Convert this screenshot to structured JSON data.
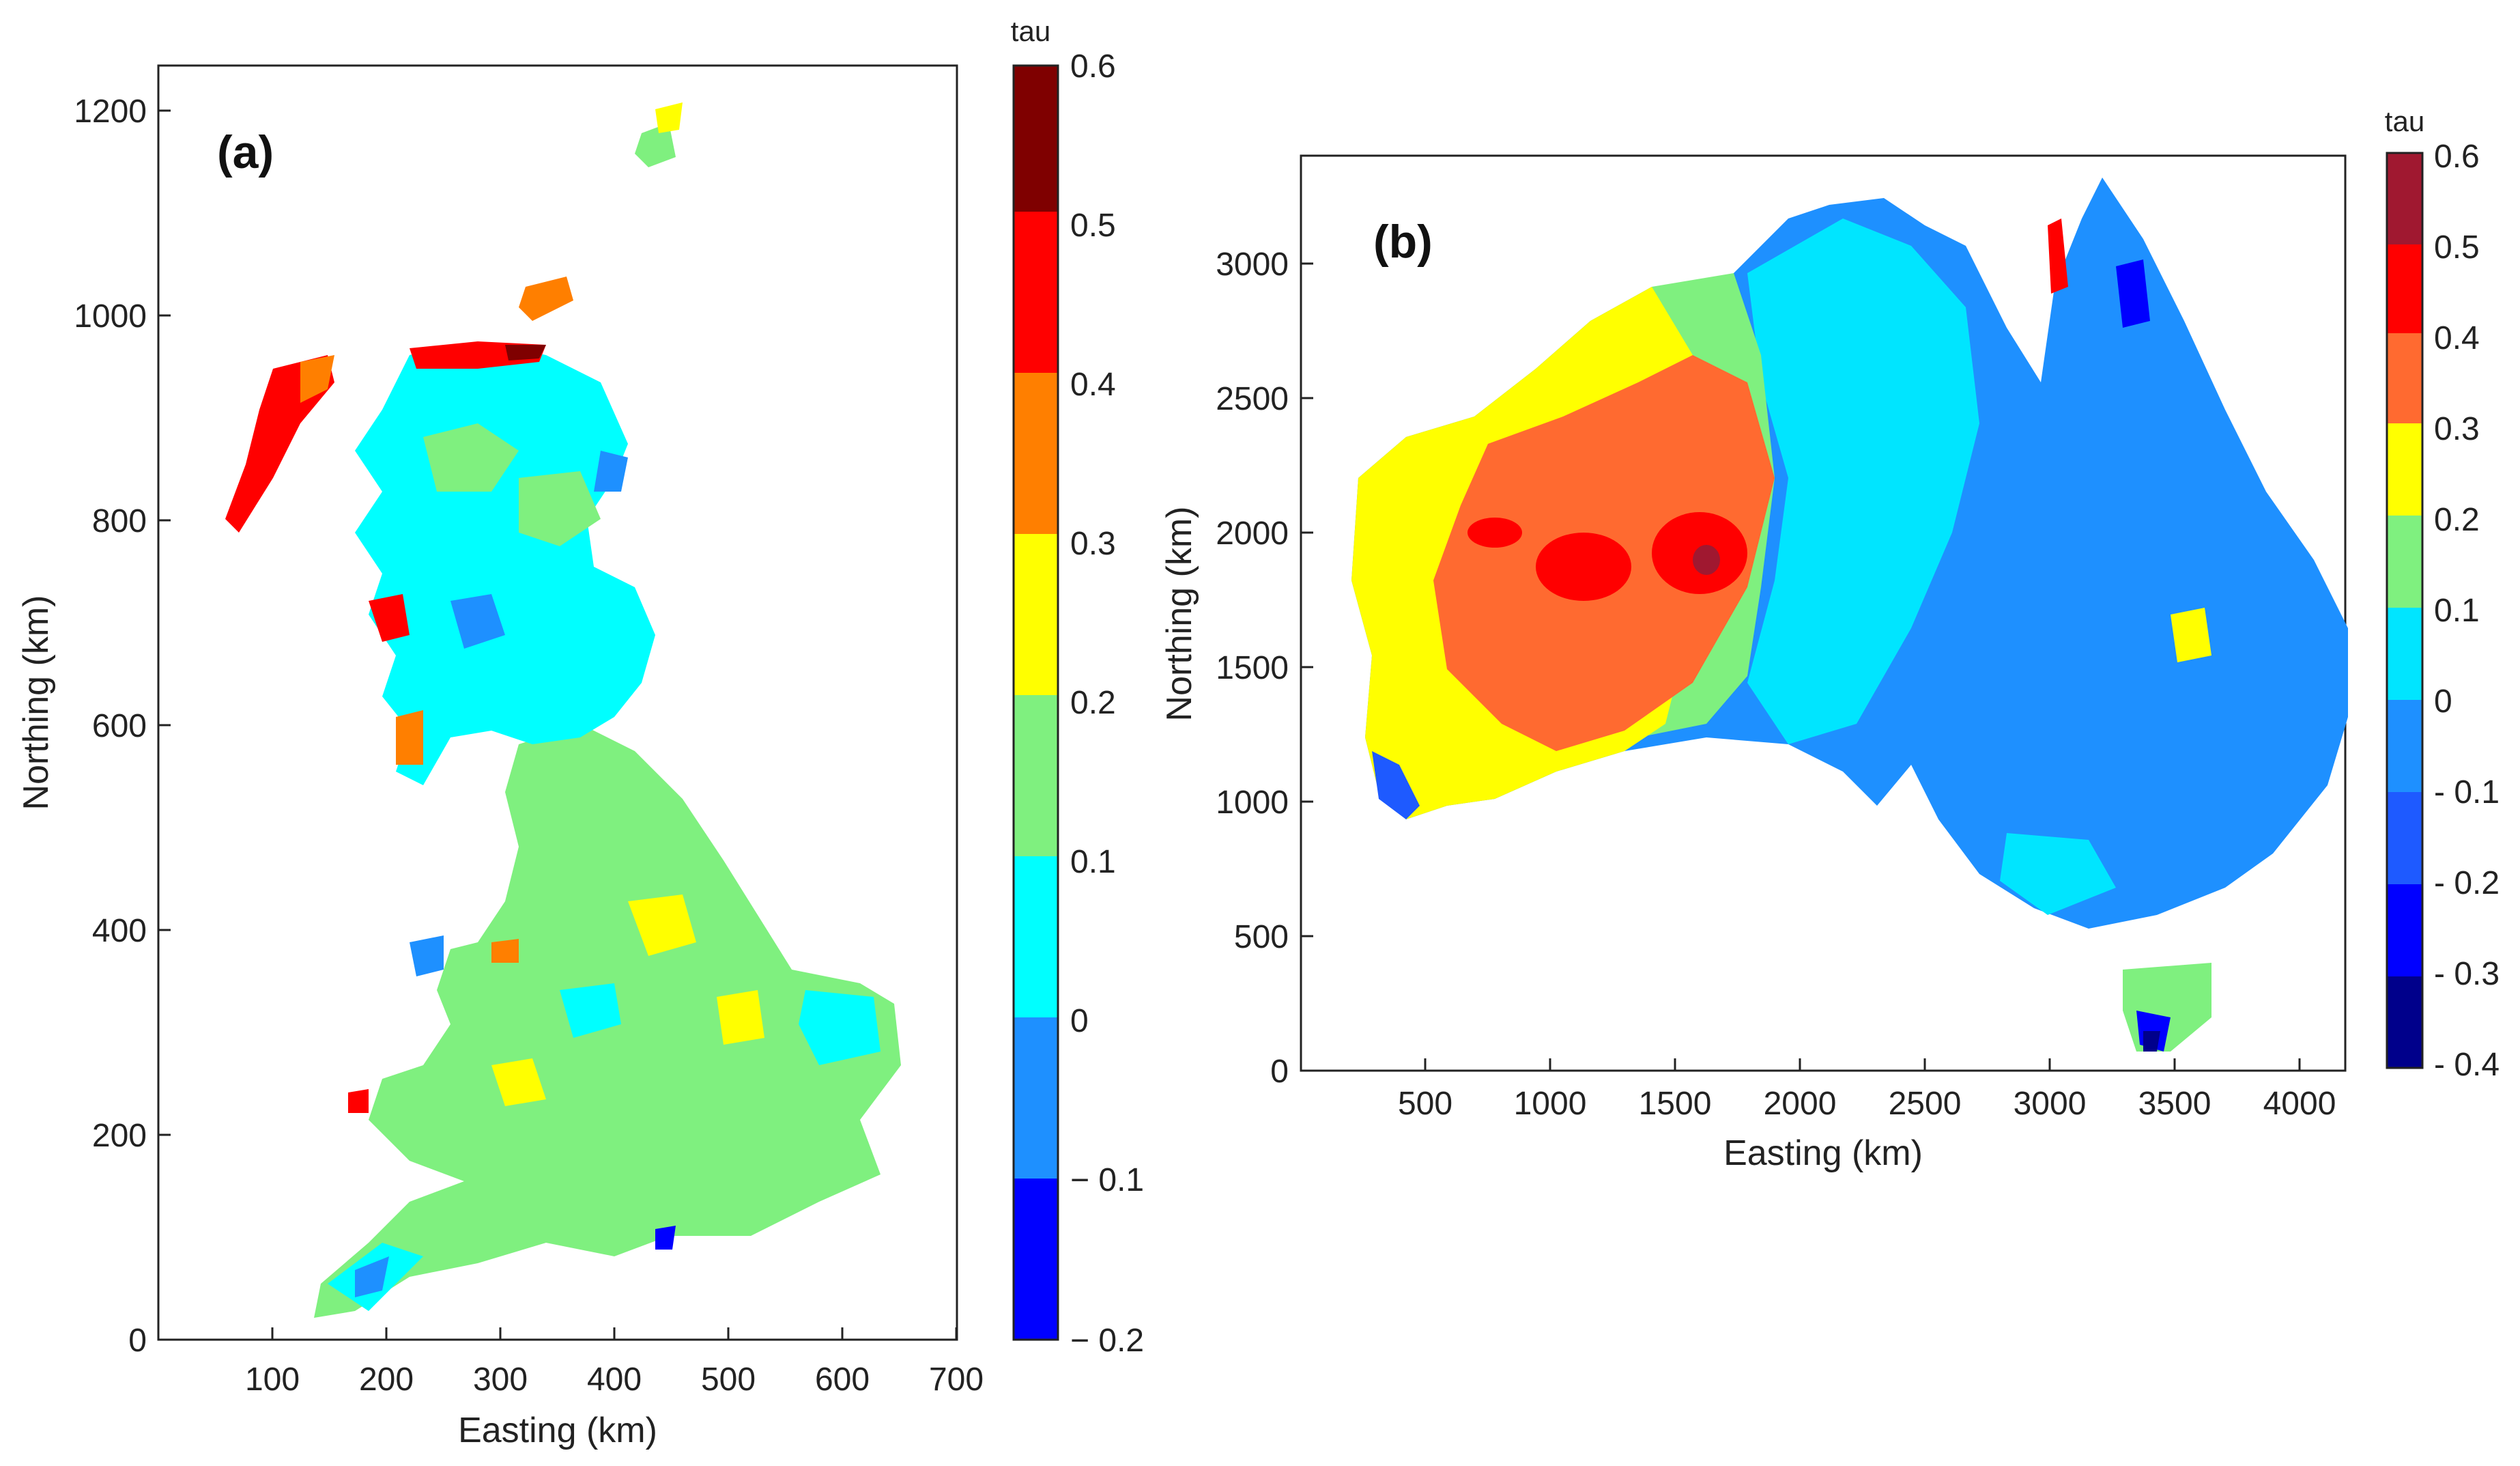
{
  "colors": {
    "tau_scale": [
      "#0000cc",
      "#0000ff",
      "#0a47f0",
      "#1e90ff",
      "#00ffff",
      "#7fff7f",
      "#ffff00",
      "#ff7f00",
      "#ff0000",
      "#7f0000",
      "#a01830",
      "#ff6a30"
    ],
    "uk_bins": [
      "#0000ff",
      "#1e90ff",
      "#00ffff",
      "#7ff07f",
      "#ffff00",
      "#ff7f00",
      "#ff0000",
      "#7f0000"
    ],
    "au_bins": [
      "#00008b",
      "#0000ff",
      "#1e5aff",
      "#1e90ff",
      "#00e5ff",
      "#7ff07f",
      "#ffff00",
      "#ff6a30",
      "#ff0000",
      "#a01830"
    ]
  },
  "chart_data": [
    {
      "type": "heatmap",
      "panel": "(a)",
      "xlabel": "Easting (km)",
      "ylabel": "Northing (km)",
      "xlim": [
        0,
        700
      ],
      "ylim": [
        0,
        1250
      ],
      "xticks": [
        100,
        200,
        300,
        400,
        500,
        600,
        700
      ],
      "yticks": [
        0,
        200,
        400,
        600,
        800,
        1000,
        1200
      ],
      "colorbar": {
        "title": "tau",
        "ticks": [
          0.6,
          0.5,
          0.4,
          0.3,
          0.2,
          0.1,
          0,
          -0.1,
          -0.2
        ],
        "tick_labels": [
          "0.6",
          "0.5",
          "0.4",
          "0.3",
          "0.2",
          "0.1",
          "0",
          "− 0.1",
          "− 0.2"
        ]
      }
    },
    {
      "type": "heatmap",
      "panel": "(b)",
      "xlabel": "Easting (km)",
      "ylabel": "Northing (km)",
      "xlim": [
        0,
        4200
      ],
      "ylim": [
        0,
        3400
      ],
      "xticks": [
        500,
        1000,
        1500,
        2000,
        2500,
        3000,
        3500,
        4000
      ],
      "yticks": [
        0,
        500,
        1000,
        1500,
        2000,
        2500,
        3000
      ],
      "colorbar": {
        "title": "tau",
        "ticks": [
          0.6,
          0.5,
          0.4,
          0.3,
          0.2,
          0.1,
          0,
          -0.1,
          -0.2,
          -0.3,
          -0.4
        ],
        "tick_labels": [
          "0.6",
          "0.5",
          "0.4",
          "0.3",
          "0.2",
          "0.1",
          "0",
          "- 0.1",
          "- 0.2",
          "- 0.3",
          "- 0.4"
        ]
      }
    }
  ]
}
